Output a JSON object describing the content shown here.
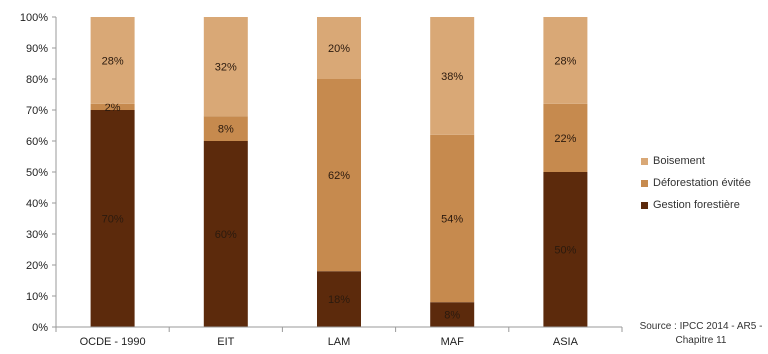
{
  "chart_data": {
    "type": "bar",
    "stacked": true,
    "categories": [
      "OCDE - 1990",
      "EIT",
      "LAM",
      "MAF",
      "ASIA"
    ],
    "series": [
      {
        "name": "Gestion forestière",
        "values": [
          70,
          60,
          18,
          8,
          50
        ],
        "labels": [
          "70%",
          "60%",
          "18%",
          "8%",
          "50%"
        ],
        "color": "#5c2a0c"
      },
      {
        "name": "Déforestation évitée",
        "values": [
          2,
          8,
          62,
          54,
          22
        ],
        "labels": [
          "2%",
          "8%",
          "62%",
          "54%",
          "22%"
        ],
        "color": "#c68a4e"
      },
      {
        "name": "Boisement",
        "values": [
          28,
          32,
          20,
          38,
          28
        ],
        "labels": [
          "28%",
          "32%",
          "20%",
          "38%",
          "28%"
        ],
        "color": "#d9a876"
      }
    ],
    "yticks": [
      "0%",
      "10%",
      "20%",
      "30%",
      "40%",
      "50%",
      "60%",
      "70%",
      "80%",
      "90%",
      "100%"
    ],
    "ylim": [
      0,
      100
    ],
    "legend_position": "right",
    "grid": false
  },
  "legend": {
    "items": [
      "Boisement",
      "Déforestation évitée",
      "Gestion forestière"
    ]
  },
  "source": {
    "line1": "Source : IPCC 2014 - AR5 -",
    "line2": "Chapitre 11"
  }
}
